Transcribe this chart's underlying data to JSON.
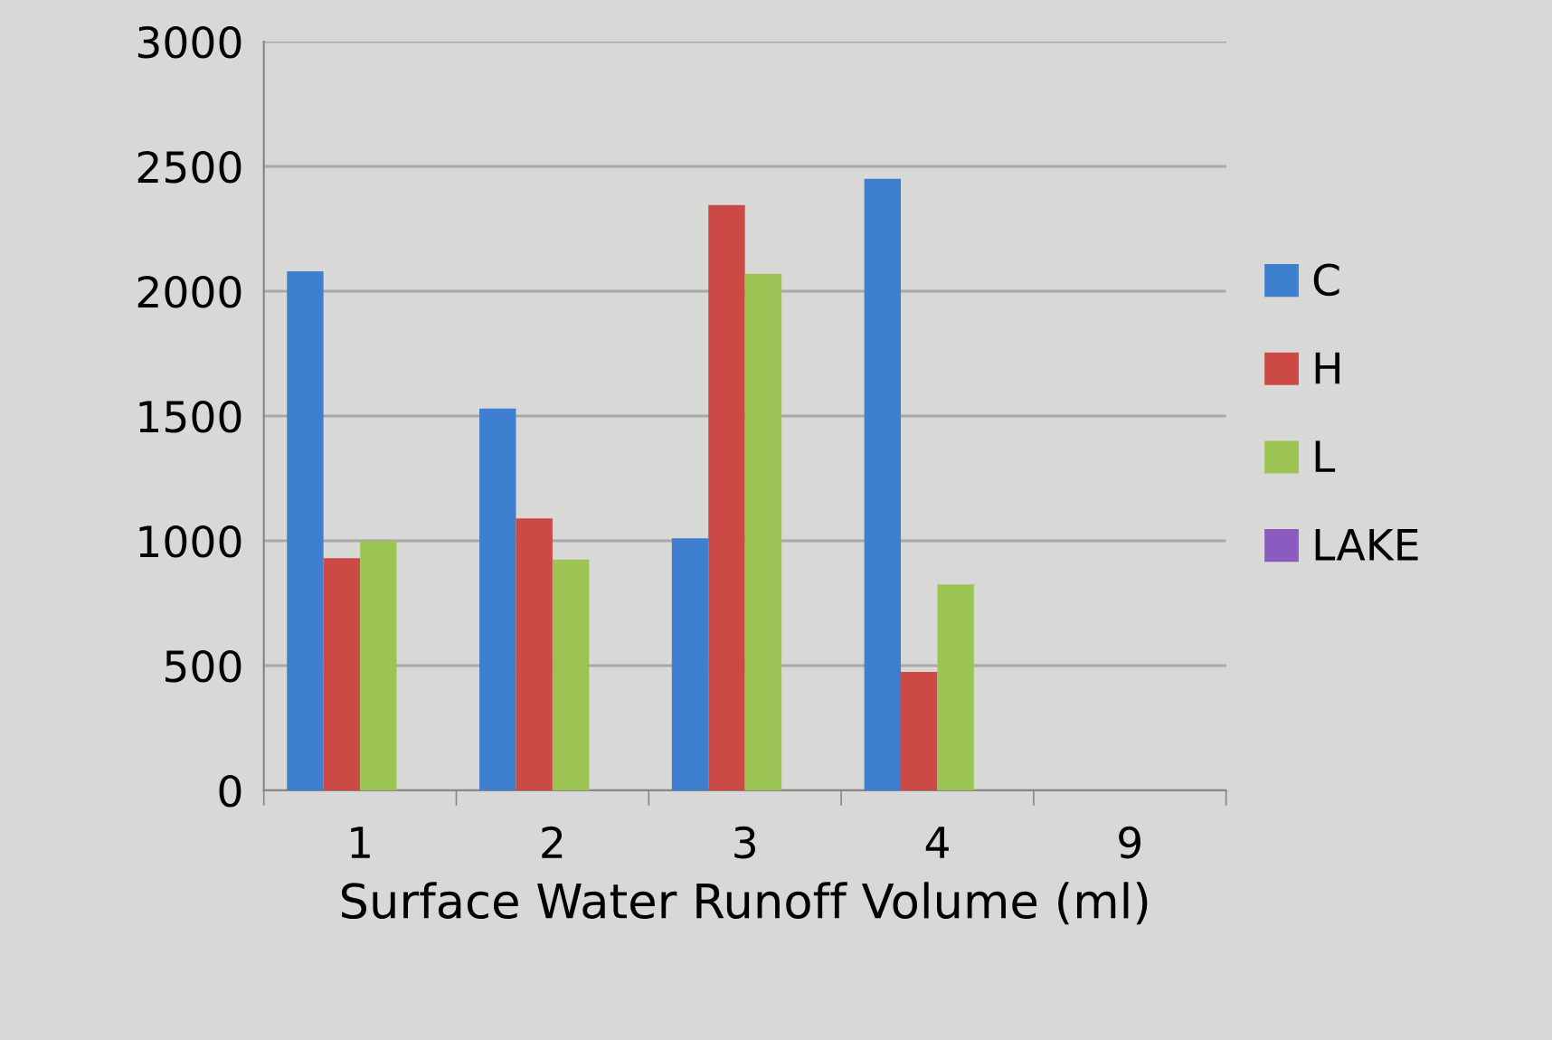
{
  "chart_data": {
    "type": "bar",
    "xlabel": "Surface Water Runoff Volume (ml)",
    "categories": [
      "1",
      "2",
      "3",
      "4",
      "9"
    ],
    "series": [
      {
        "name": "C",
        "color": "#3f7fd0",
        "values": [
          2080,
          1530,
          1010,
          2450,
          null
        ]
      },
      {
        "name": "H",
        "color": "#cc4a45",
        "values": [
          930,
          1090,
          2345,
          475,
          null
        ]
      },
      {
        "name": "L",
        "color": "#9bc455",
        "values": [
          1000,
          925,
          2070,
          825,
          null
        ]
      },
      {
        "name": "LAKE",
        "color": "#8a5cc0",
        "values": [
          null,
          null,
          null,
          null,
          null
        ]
      }
    ],
    "ylim": [
      0,
      3000
    ],
    "yticks": [
      0,
      500,
      1000,
      1500,
      2000,
      2500,
      3000
    ],
    "grid": "y",
    "legend": "right"
  }
}
